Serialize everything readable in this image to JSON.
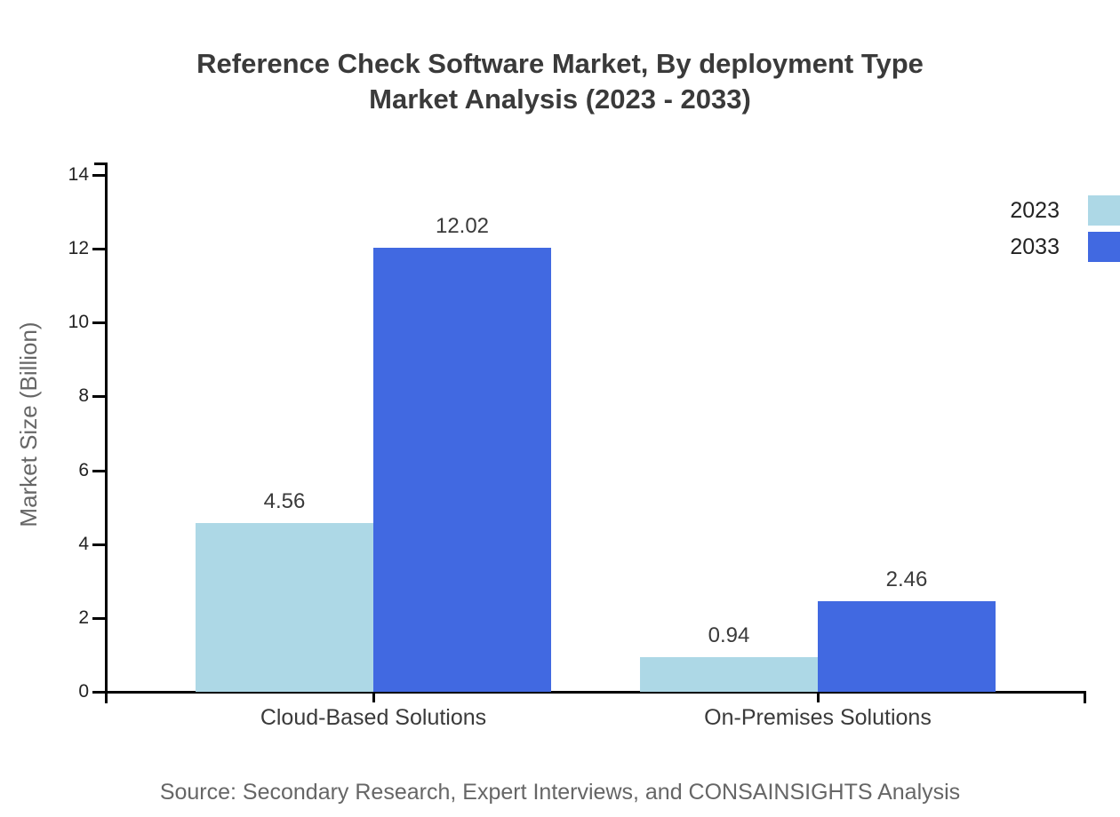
{
  "page": {
    "title_line1": "Reference Check Software Market, By deployment Type",
    "title_line2": "Market Analysis (2023 - 2033)",
    "source_note": "Source: Secondary Research, Expert Interviews, and CONSAINSIGHTS Analysis"
  },
  "chart_data": {
    "type": "bar",
    "title": "Reference Check Software Market, By deployment Type Market Analysis (2023 - 2033)",
    "categories": [
      "Cloud-Based Solutions",
      "On-Premises Solutions"
    ],
    "series": [
      {
        "name": "2023",
        "color": "#ADD8E6",
        "values": [
          4.56,
          0.94
        ]
      },
      {
        "name": "2033",
        "color": "#4169E1",
        "values": [
          12.02,
          2.46
        ]
      }
    ],
    "xlabel": "",
    "ylabel": "Market Size (Billion)",
    "ylim": [
      0,
      14.35
    ],
    "yticks": [
      0,
      2,
      4,
      6,
      8,
      10,
      12,
      14
    ],
    "grid": false,
    "legend_position": "top-right",
    "axis_color": "#000000",
    "text_color": "#3a3a3a",
    "muted_text_color": "#666666"
  }
}
